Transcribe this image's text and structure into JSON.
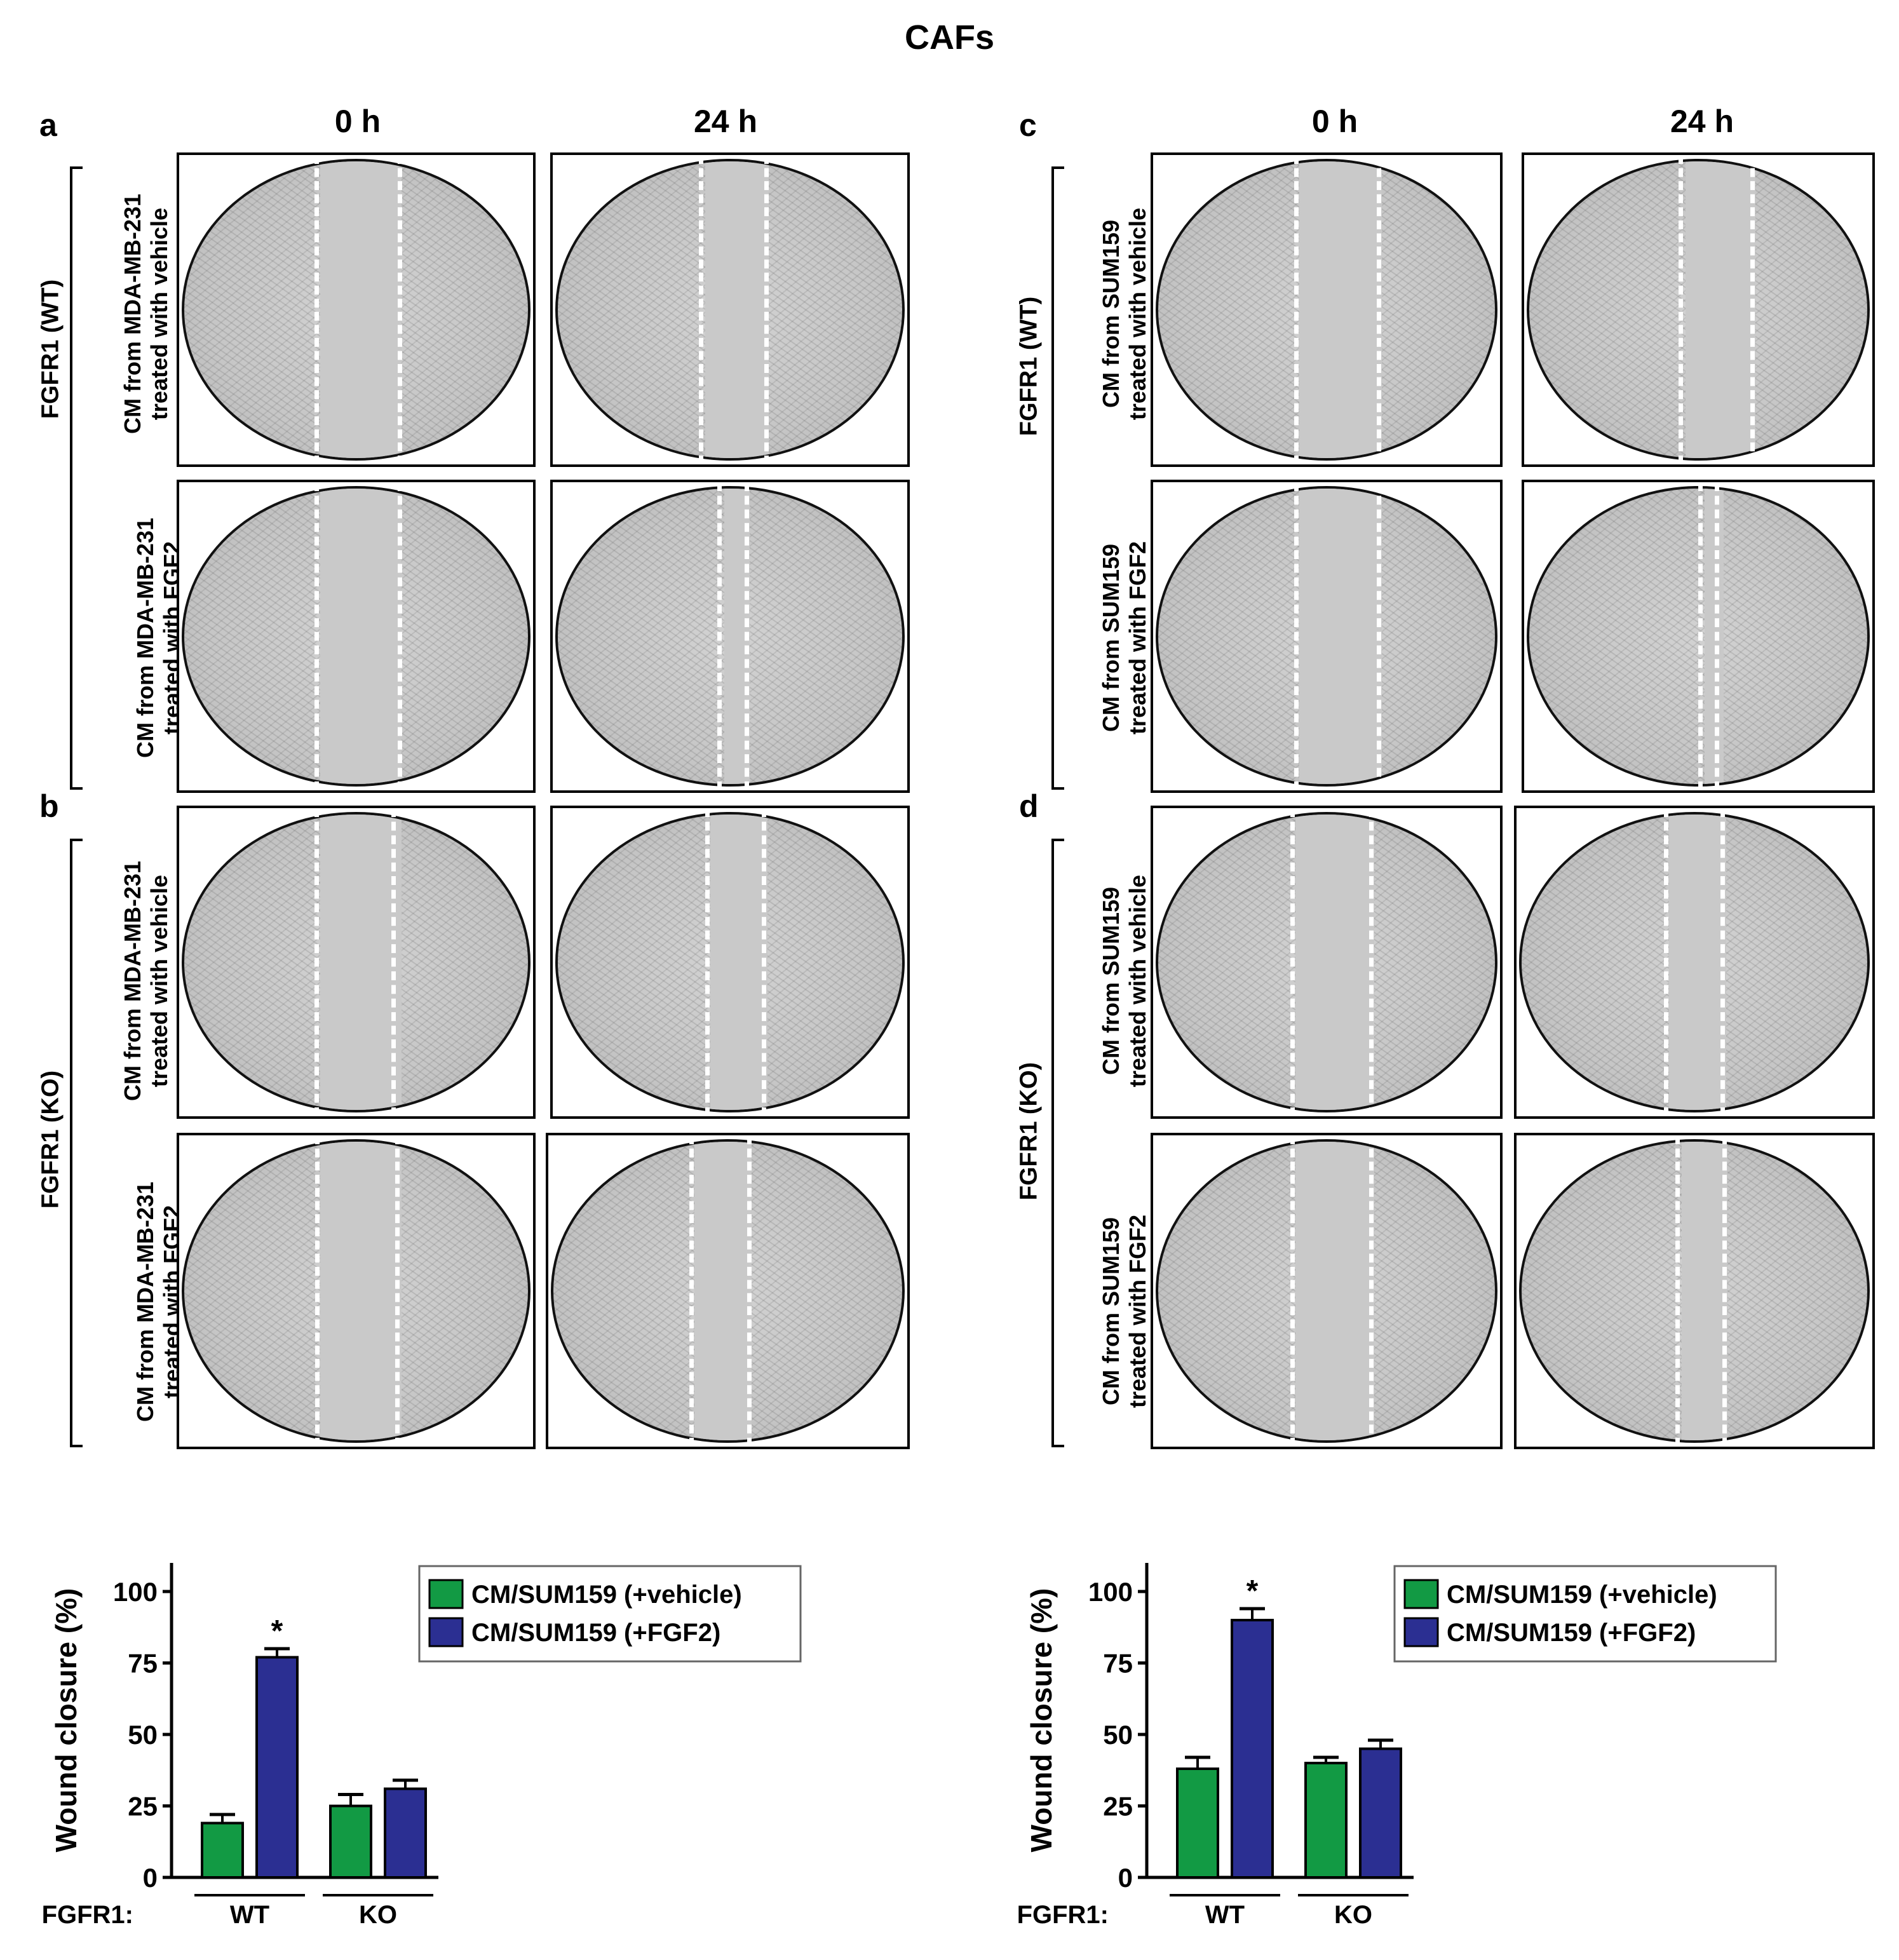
{
  "title": "CAFs",
  "panels": {
    "a": {
      "letter": "a",
      "col0": "0 h",
      "col1": "24 h",
      "group": "FGFR1 (WT)",
      "row_vehicle": [
        "CM from MDA-MB-231",
        "treated with vehicle"
      ],
      "row_fgf2": [
        "CM from MDA-MB-231",
        "treated with FGF2"
      ]
    },
    "b": {
      "letter": "b",
      "group": "FGFR1 (KO)",
      "row_vehicle": [
        "CM from MDA-MB-231",
        "treated with vehicle"
      ],
      "row_fgf2": [
        "CM from MDA-MB-231",
        "treated with FGF2"
      ]
    },
    "c": {
      "letter": "c",
      "col0": "0 h",
      "col1": "24 h",
      "group": "FGFR1 (WT)",
      "row_vehicle": [
        "CM from SUM159",
        "treated with vehicle"
      ],
      "row_fgf2": [
        "CM from SUM159",
        "treated with FGF2"
      ]
    },
    "d": {
      "letter": "d",
      "group": "FGFR1 (KO)",
      "row_vehicle": [
        "CM from SUM159",
        "treated with vehicle"
      ],
      "row_fgf2": [
        "CM from SUM159",
        "treated with FGF2"
      ]
    }
  },
  "colors": {
    "vehicle": "#129a44",
    "fgf2": "#2b2f92"
  },
  "chart_data": [
    {
      "type": "bar",
      "ylabel": "Wound closure (%)",
      "yticks": [
        0,
        25,
        50,
        75,
        100
      ],
      "ylim": [
        0,
        110
      ],
      "xprefix": "FGFR1:",
      "categories": [
        "WT",
        "KO"
      ],
      "series": [
        {
          "name": "CM/SUM159 (+vehicle)",
          "color": "#129a44",
          "values": [
            19,
            25
          ],
          "errors": [
            3,
            4
          ]
        },
        {
          "name": "CM/SUM159 (+FGF2)",
          "color": "#2b2f92",
          "values": [
            77,
            31
          ],
          "errors": [
            3,
            3
          ]
        }
      ],
      "annotations": [
        {
          "category": "WT",
          "series": 1,
          "text": "*"
        }
      ],
      "legend": "top-right"
    },
    {
      "type": "bar",
      "ylabel": "Wound closure (%)",
      "yticks": [
        0,
        25,
        50,
        75,
        100
      ],
      "ylim": [
        0,
        110
      ],
      "xprefix": "FGFR1:",
      "categories": [
        "WT",
        "KO"
      ],
      "series": [
        {
          "name": "CM/SUM159 (+vehicle)",
          "color": "#129a44",
          "values": [
            38,
            40
          ],
          "errors": [
            4,
            2
          ]
        },
        {
          "name": "CM/SUM159 (+FGF2)",
          "color": "#2b2f92",
          "values": [
            90,
            45
          ],
          "errors": [
            4,
            3
          ]
        }
      ],
      "annotations": [
        {
          "category": "WT",
          "series": 1,
          "text": "*"
        }
      ],
      "legend": "top-right"
    }
  ]
}
